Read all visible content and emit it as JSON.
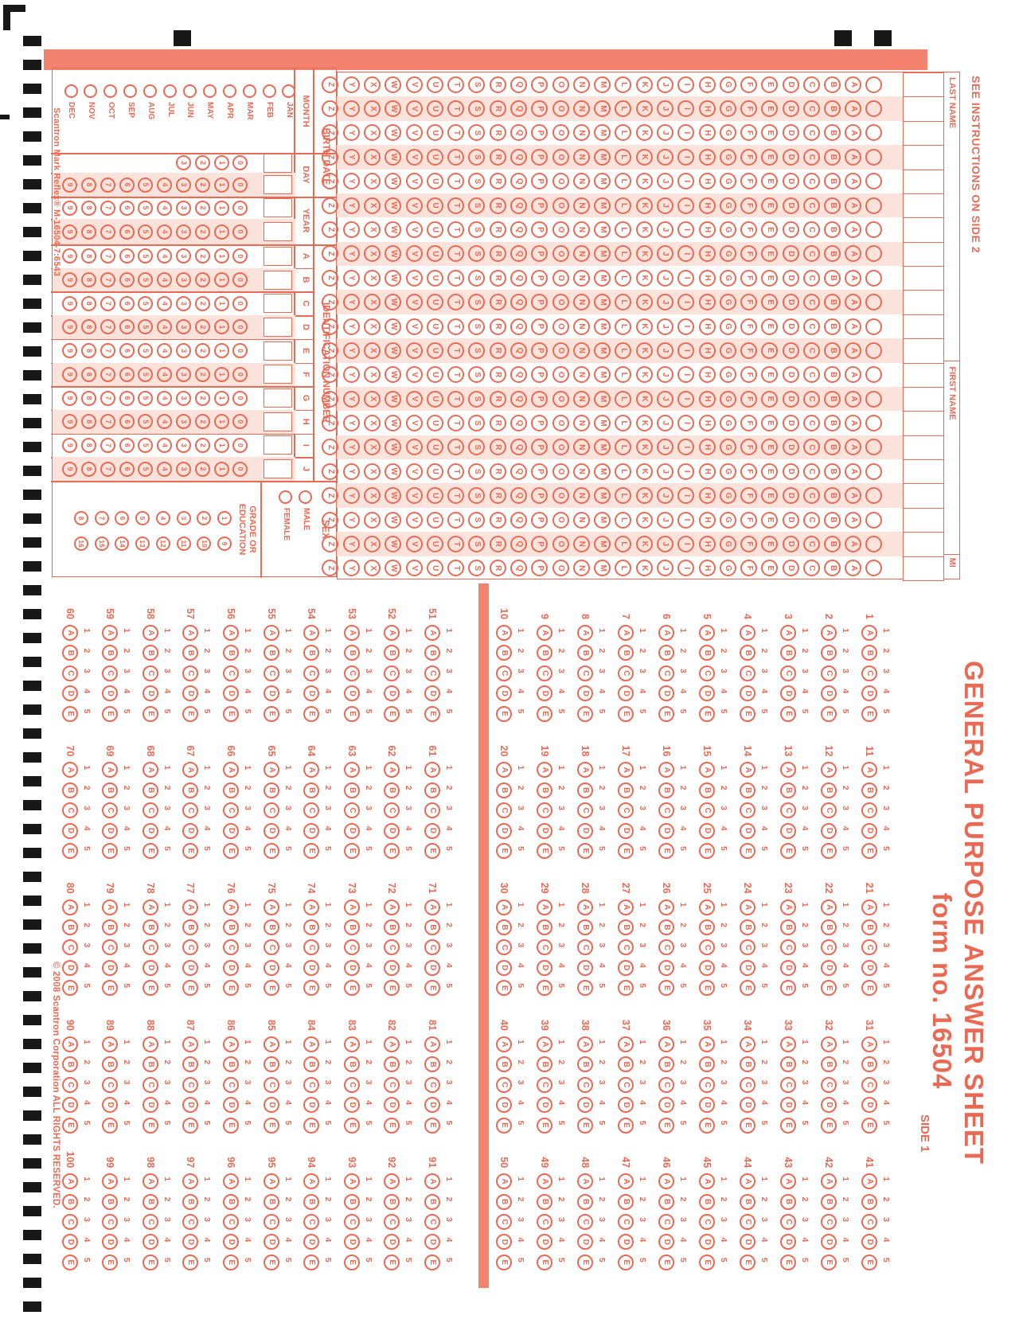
{
  "colors": {
    "red": "#e96a54",
    "bar": "#f3836e",
    "pink": "#fbe3dc",
    "black": "#181818"
  },
  "top": {
    "see_instructions": "SEE INSTRUCTIONS ON SIDE 2",
    "title": "GENERAL PURPOSE ANSWER SHEET",
    "form_no": "form no. 16504",
    "side_label": "SIDE 1"
  },
  "name_grid": {
    "last_name_label": "LAST NAME",
    "first_name_label": "FIRST NAME",
    "mi_label": "MI",
    "last_cols": 12,
    "first_cols": 8,
    "mi_cols": 1,
    "letters": "ABCDEFGHIJKLMNOPQRSTUVWXYZ"
  },
  "birth_date": {
    "label": "BIRTH DATE",
    "month_label": "MONTH",
    "day_label": "DAY",
    "year_label": "YEAR",
    "months": [
      "JAN",
      "FEB",
      "MAR",
      "APR",
      "MAY",
      "JUN",
      "JUL",
      "AUG",
      "SEP",
      "OCT",
      "NOV",
      "DEC"
    ],
    "day_tens_digits": [
      "0",
      "1",
      "2",
      "3"
    ],
    "digits": [
      "0",
      "1",
      "2",
      "3",
      "4",
      "5",
      "6",
      "7",
      "8",
      "9"
    ]
  },
  "identification": {
    "label": "IDENTIFICATION NUMBER",
    "columns": [
      "A",
      "B",
      "C",
      "D",
      "E",
      "F",
      "G",
      "H",
      "I",
      "J"
    ],
    "digits": [
      "0",
      "1",
      "2",
      "3",
      "4",
      "5",
      "6",
      "7",
      "8",
      "9"
    ]
  },
  "sex": {
    "label": "SEX",
    "options": [
      "MALE",
      "FEMALE"
    ]
  },
  "grade": {
    "label_line1": "GRADE OR",
    "label_line2": "EDUCATION",
    "col1": [
      "1",
      "2",
      "3",
      "4",
      "5",
      "6",
      "7",
      "8"
    ],
    "col2": [
      "9",
      "10",
      "11",
      "12",
      "13",
      "14",
      "15",
      "16"
    ]
  },
  "answers": {
    "choice_letters": [
      "A",
      "B",
      "C",
      "D",
      "E"
    ],
    "choice_digits": [
      "1",
      "2",
      "3",
      "4",
      "5"
    ],
    "upper_column_starts": [
      1,
      11,
      21,
      31,
      41
    ],
    "lower_column_starts": [
      51,
      61,
      71,
      81,
      91
    ],
    "questions_per_column": 10,
    "total_questions": 100
  },
  "footer": {
    "left": "Scantron Mark Reflex® M-16504-7:6543",
    "right": "© 2008 Scantron Corporation   ALL RIGHTS RESERVED."
  }
}
